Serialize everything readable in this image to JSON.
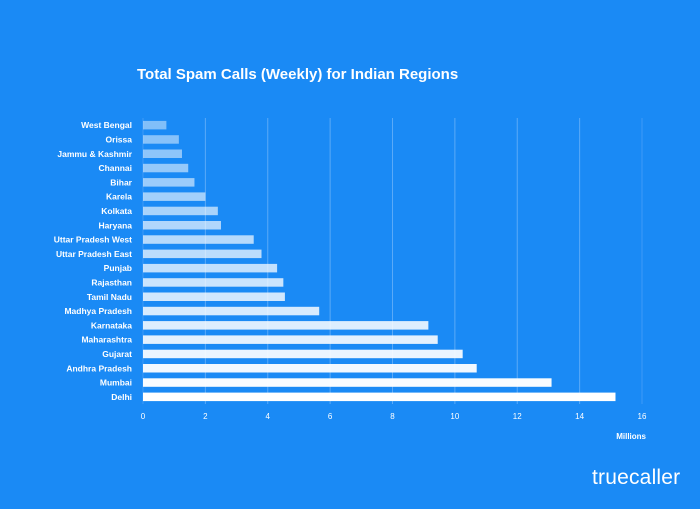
{
  "brand": {
    "logo_text": "truecaller"
  },
  "colors": {
    "background": "#1a8af5",
    "grid": "#5aaaf8"
  },
  "chart_data": {
    "type": "bar",
    "orientation": "horizontal",
    "title": "Total Spam Calls (Weekly) for Indian Regions",
    "xlabel": "Millions",
    "ylabel": "",
    "xlim": [
      0,
      16
    ],
    "xticks": [
      0,
      2,
      4,
      6,
      8,
      10,
      12,
      14,
      16
    ],
    "grid": true,
    "categories": [
      "West Bengal",
      "Orissa",
      "Jammu & Kashmir",
      "Channai",
      "Bihar",
      "Karela",
      "Kolkata",
      "Haryana",
      "Uttar Pradesh West",
      "Uttar Pradesh East",
      "Punjab",
      "Rajasthan",
      "Tamil Nadu",
      "Madhya Pradesh",
      "Karnataka",
      "Maharashtra",
      "Gujarat",
      "Andhra Pradesh",
      "Mumbai",
      "Delhi"
    ],
    "values": [
      0.75,
      1.15,
      1.25,
      1.45,
      1.65,
      2.0,
      2.4,
      2.5,
      3.55,
      3.8,
      4.3,
      4.5,
      4.55,
      5.65,
      9.15,
      9.45,
      10.25,
      10.7,
      13.1,
      15.15
    ]
  }
}
